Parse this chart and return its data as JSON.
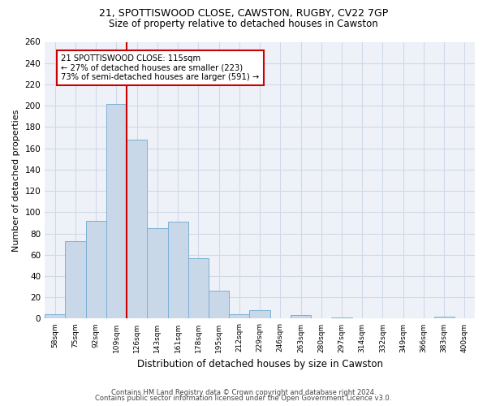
{
  "title1": "21, SPOTTISWOOD CLOSE, CAWSTON, RUGBY, CV22 7GP",
  "title2": "Size of property relative to detached houses in Cawston",
  "xlabel": "Distribution of detached houses by size in Cawston",
  "ylabel": "Number of detached properties",
  "footnote1": "Contains HM Land Registry data © Crown copyright and database right 2024.",
  "footnote2": "Contains public sector information licensed under the Open Government Licence v3.0.",
  "bar_labels": [
    "58sqm",
    "75sqm",
    "92sqm",
    "109sqm",
    "126sqm",
    "143sqm",
    "161sqm",
    "178sqm",
    "195sqm",
    "212sqm",
    "229sqm",
    "246sqm",
    "263sqm",
    "280sqm",
    "297sqm",
    "314sqm",
    "332sqm",
    "349sqm",
    "366sqm",
    "383sqm",
    "400sqm"
  ],
  "bar_values": [
    4,
    73,
    92,
    202,
    168,
    85,
    91,
    57,
    26,
    4,
    8,
    0,
    3,
    0,
    1,
    0,
    0,
    0,
    0,
    2,
    0
  ],
  "bar_color": "#c8d8e8",
  "bar_edge_color": "#7bafd4",
  "grid_color": "#d0d8e8",
  "background_color": "#eef2f8",
  "property_bar_index": 3,
  "annotation_line1": "21 SPOTTISWOOD CLOSE: 115sqm",
  "annotation_line2": "← 27% of detached houses are smaller (223)",
  "annotation_line3": "73% of semi-detached houses are larger (591) →",
  "annotation_box_color": "#ffffff",
  "annotation_box_edge": "#cc0000",
  "red_line_color": "#cc0000",
  "ylim": [
    0,
    260
  ],
  "yticks": [
    0,
    20,
    40,
    60,
    80,
    100,
    120,
    140,
    160,
    180,
    200,
    220,
    240,
    260
  ]
}
